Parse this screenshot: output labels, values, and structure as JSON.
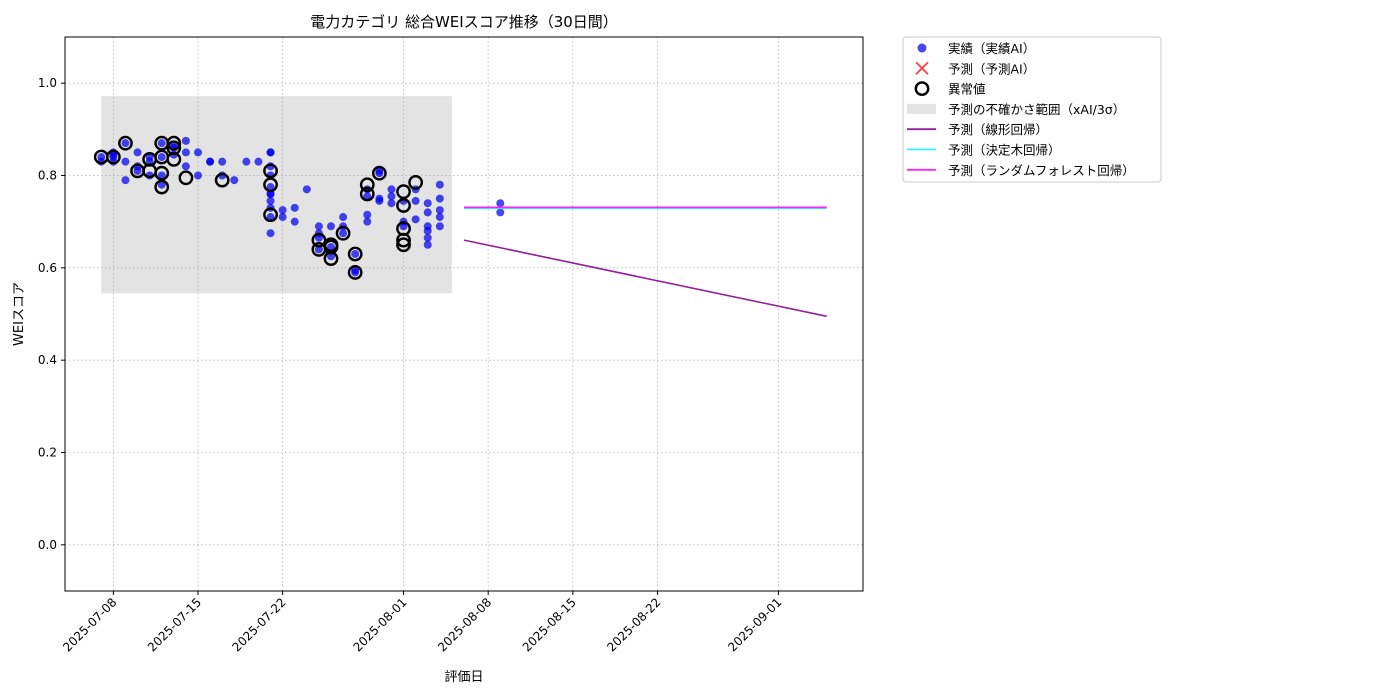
{
  "chart_data": {
    "type": "scatter",
    "title": "電力カテゴリ 総合WEIスコア推移（30日間）",
    "xlabel": "評価日",
    "ylabel": "WEIスコア",
    "ylim": [
      -0.1,
      1.1
    ],
    "xlim": [
      "2025-07-04",
      "2025-09-08"
    ],
    "grid": true,
    "grid_style": "dotted",
    "legend_position": "outside-top-right",
    "y_ticks": [
      "0.0",
      "0.2",
      "0.4",
      "0.6",
      "0.8",
      "1.0"
    ],
    "x_ticks": [
      "2025-07-08",
      "2025-07-15",
      "2025-07-22",
      "2025-08-01",
      "2025-08-08",
      "2025-08-15",
      "2025-08-22",
      "2025-09-01"
    ],
    "colors": {
      "actual": "#0000ee",
      "predicted_marker": "#ff0000",
      "anomaly": "#000000",
      "band": "#cccccc",
      "linear": "#93219a",
      "tree": "#33f0ff",
      "forest": "#ff22ff"
    },
    "legend": [
      {
        "key": "actual",
        "label": "実績（実績AI）",
        "kind": "dot"
      },
      {
        "key": "predicted_marker",
        "label": "予測（予測AI）",
        "kind": "cross"
      },
      {
        "key": "anomaly",
        "label": "異常値",
        "kind": "ring"
      },
      {
        "key": "band",
        "label": "予測の不確かさ範囲（xAI/3σ）",
        "kind": "patch"
      },
      {
        "key": "linear",
        "label": "予測（線形回帰）",
        "kind": "line"
      },
      {
        "key": "tree",
        "label": "予測（決定木回帰）",
        "kind": "line"
      },
      {
        "key": "forest",
        "label": "予測（ランダムフォレスト回帰）",
        "kind": "line"
      }
    ],
    "uncertainty_band": {
      "x_start": "2025-07-07",
      "x_end": "2025-08-05",
      "y_low": 0.545,
      "y_high": 0.972
    },
    "series": [
      {
        "name": "実績（実績AI）",
        "points": [
          [
            "2025-07-07",
            0.84
          ],
          [
            "2025-07-07",
            0.83
          ],
          [
            "2025-07-08",
            0.845
          ],
          [
            "2025-07-08",
            0.83
          ],
          [
            "2025-07-08",
            0.84
          ],
          [
            "2025-07-08",
            0.85
          ],
          [
            "2025-07-09",
            0.87
          ],
          [
            "2025-07-09",
            0.79
          ],
          [
            "2025-07-09",
            0.83
          ],
          [
            "2025-07-10",
            0.82
          ],
          [
            "2025-07-10",
            0.85
          ],
          [
            "2025-07-10",
            0.81
          ],
          [
            "2025-07-11",
            0.8
          ],
          [
            "2025-07-11",
            0.83
          ],
          [
            "2025-07-11",
            0.84
          ],
          [
            "2025-07-12",
            0.87
          ],
          [
            "2025-07-12",
            0.84
          ],
          [
            "2025-07-12",
            0.8
          ],
          [
            "2025-07-12",
            0.78
          ],
          [
            "2025-07-13",
            0.865
          ],
          [
            "2025-07-13",
            0.845
          ],
          [
            "2025-07-13",
            0.86
          ],
          [
            "2025-07-14",
            0.875
          ],
          [
            "2025-07-14",
            0.85
          ],
          [
            "2025-07-14",
            0.82
          ],
          [
            "2025-07-15",
            0.85
          ],
          [
            "2025-07-15",
            0.8
          ],
          [
            "2025-07-16",
            0.83
          ],
          [
            "2025-07-16",
            0.83
          ],
          [
            "2025-07-17",
            0.83
          ],
          [
            "2025-07-17",
            0.8
          ],
          [
            "2025-07-18",
            0.79
          ],
          [
            "2025-07-19",
            0.83
          ],
          [
            "2025-07-20",
            0.83
          ],
          [
            "2025-07-21",
            0.85
          ],
          [
            "2025-07-21",
            0.85
          ],
          [
            "2025-07-21",
            0.82
          ],
          [
            "2025-07-21",
            0.8
          ],
          [
            "2025-07-21",
            0.775
          ],
          [
            "2025-07-21",
            0.76
          ],
          [
            "2025-07-21",
            0.745
          ],
          [
            "2025-07-21",
            0.73
          ],
          [
            "2025-07-21",
            0.71
          ],
          [
            "2025-07-21",
            0.675
          ],
          [
            "2025-07-21",
            0.76
          ],
          [
            "2025-07-22",
            0.725
          ],
          [
            "2025-07-22",
            0.71
          ],
          [
            "2025-07-23",
            0.73
          ],
          [
            "2025-07-23",
            0.7
          ],
          [
            "2025-07-24",
            0.77
          ],
          [
            "2025-07-25",
            0.69
          ],
          [
            "2025-07-25",
            0.675
          ],
          [
            "2025-07-25",
            0.665
          ],
          [
            "2025-07-25",
            0.64
          ],
          [
            "2025-07-26",
            0.69
          ],
          [
            "2025-07-26",
            0.645
          ],
          [
            "2025-07-26",
            0.625
          ],
          [
            "2025-07-27",
            0.71
          ],
          [
            "2025-07-27",
            0.69
          ],
          [
            "2025-07-27",
            0.675
          ],
          [
            "2025-07-28",
            0.595
          ],
          [
            "2025-07-28",
            0.59
          ],
          [
            "2025-07-28",
            0.63
          ],
          [
            "2025-07-29",
            0.77
          ],
          [
            "2025-07-29",
            0.755
          ],
          [
            "2025-07-29",
            0.715
          ],
          [
            "2025-07-29",
            0.7
          ],
          [
            "2025-07-30",
            0.81
          ],
          [
            "2025-07-30",
            0.805
          ],
          [
            "2025-07-30",
            0.75
          ],
          [
            "2025-07-30",
            0.745
          ],
          [
            "2025-07-31",
            0.77
          ],
          [
            "2025-07-31",
            0.755
          ],
          [
            "2025-07-31",
            0.74
          ],
          [
            "2025-08-01",
            0.745
          ],
          [
            "2025-08-01",
            0.7
          ],
          [
            "2025-08-01",
            0.69
          ],
          [
            "2025-08-02",
            0.77
          ],
          [
            "2025-08-02",
            0.745
          ],
          [
            "2025-08-02",
            0.705
          ],
          [
            "2025-08-03",
            0.74
          ],
          [
            "2025-08-03",
            0.72
          ],
          [
            "2025-08-03",
            0.69
          ],
          [
            "2025-08-03",
            0.68
          ],
          [
            "2025-08-03",
            0.665
          ],
          [
            "2025-08-03",
            0.65
          ],
          [
            "2025-08-04",
            0.78
          ],
          [
            "2025-08-04",
            0.75
          ],
          [
            "2025-08-04",
            0.725
          ],
          [
            "2025-08-04",
            0.69
          ],
          [
            "2025-08-04",
            0.71
          ],
          [
            "2025-08-09",
            0.74
          ],
          [
            "2025-08-09",
            0.72
          ]
        ]
      },
      {
        "name": "異常値",
        "points": [
          [
            "2025-07-07",
            0.84
          ],
          [
            "2025-07-08",
            0.84
          ],
          [
            "2025-07-09",
            0.87
          ],
          [
            "2025-07-10",
            0.81
          ],
          [
            "2025-07-11",
            0.81
          ],
          [
            "2025-07-11",
            0.835
          ],
          [
            "2025-07-12",
            0.84
          ],
          [
            "2025-07-12",
            0.87
          ],
          [
            "2025-07-12",
            0.805
          ],
          [
            "2025-07-12",
            0.775
          ],
          [
            "2025-07-13",
            0.835
          ],
          [
            "2025-07-13",
            0.87
          ],
          [
            "2025-07-13",
            0.86
          ],
          [
            "2025-07-14",
            0.795
          ],
          [
            "2025-07-17",
            0.79
          ],
          [
            "2025-07-21",
            0.81
          ],
          [
            "2025-07-21",
            0.78
          ],
          [
            "2025-07-21",
            0.715
          ],
          [
            "2025-07-25",
            0.66
          ],
          [
            "2025-07-25",
            0.64
          ],
          [
            "2025-07-26",
            0.62
          ],
          [
            "2025-07-26",
            0.645
          ],
          [
            "2025-07-26",
            0.65
          ],
          [
            "2025-07-27",
            0.675
          ],
          [
            "2025-07-28",
            0.59
          ],
          [
            "2025-07-28",
            0.63
          ],
          [
            "2025-07-29",
            0.78
          ],
          [
            "2025-07-29",
            0.76
          ],
          [
            "2025-07-30",
            0.805
          ],
          [
            "2025-08-01",
            0.765
          ],
          [
            "2025-08-01",
            0.735
          ],
          [
            "2025-08-01",
            0.685
          ],
          [
            "2025-08-01",
            0.66
          ],
          [
            "2025-08-01",
            0.65
          ],
          [
            "2025-08-02",
            0.785
          ]
        ]
      }
    ],
    "forecast_lines": [
      {
        "name": "予測（線形回帰）",
        "x": [
          "2025-08-06",
          "2025-09-05"
        ],
        "y": [
          0.66,
          0.495
        ]
      },
      {
        "name": "予測（決定木回帰）",
        "x": [
          "2025-08-06",
          "2025-09-05"
        ],
        "y": [
          0.729,
          0.729
        ]
      },
      {
        "name": "予測（ランダムフォレスト回帰）",
        "x": [
          "2025-08-06",
          "2025-09-05"
        ],
        "y": [
          0.731,
          0.731
        ]
      }
    ]
  }
}
